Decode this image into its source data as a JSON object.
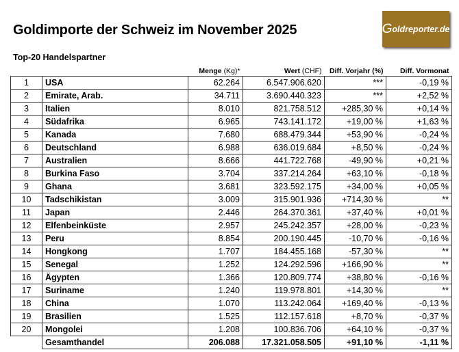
{
  "title": "Goldimporte der Schweiz im November 2025",
  "subtitle": "Top-20 Handelspartner",
  "logo": "Goldreporter.de",
  "colors": {
    "logo_bg": "#9b7322"
  },
  "headers": {
    "menge": "Menge",
    "menge_unit": "(Kg)*",
    "wert": "Wert",
    "wert_unit": "(CHF)",
    "vorjahr": "Diff. Vorjahr (%)",
    "vormonat": "Diff. Vormonat"
  },
  "rows": [
    {
      "rank": "1",
      "country": "USA",
      "menge": "62.264",
      "wert": "6.547.906.620",
      "vorjahr": "***",
      "vormonat": "-0,19 %"
    },
    {
      "rank": "2",
      "country": "Emirate, Arab.",
      "menge": "34.711",
      "wert": "3.690.440.323",
      "vorjahr": "***",
      "vormonat": "+2,52 %"
    },
    {
      "rank": "3",
      "country": "Italien",
      "menge": "8.010",
      "wert": "821.758.512",
      "vorjahr": "+285,30 %",
      "vormonat": "+0,14 %"
    },
    {
      "rank": "4",
      "country": "Südafrika",
      "menge": "6.965",
      "wert": "743.141.172",
      "vorjahr": "+19,00 %",
      "vormonat": "+1,63 %"
    },
    {
      "rank": "5",
      "country": "Kanada",
      "menge": "7.680",
      "wert": "688.479.344",
      "vorjahr": "+53,90 %",
      "vormonat": "-0,24 %"
    },
    {
      "rank": "6",
      "country": "Deutschland",
      "menge": "6.988",
      "wert": "636.019.684",
      "vorjahr": "+8,50 %",
      "vormonat": "-0,24 %"
    },
    {
      "rank": "7",
      "country": "Australien",
      "menge": "8.666",
      "wert": "441.722.768",
      "vorjahr": "-49,90 %",
      "vormonat": "+0,21 %"
    },
    {
      "rank": "8",
      "country": "Burkina Faso",
      "menge": "3.704",
      "wert": "337.214.264",
      "vorjahr": "+63,10 %",
      "vormonat": "-0,18 %"
    },
    {
      "rank": "9",
      "country": "Ghana",
      "menge": "3.681",
      "wert": "323.592.175",
      "vorjahr": "+34,00 %",
      "vormonat": "+0,05 %"
    },
    {
      "rank": "10",
      "country": "Tadschikistan",
      "menge": "3.009",
      "wert": "315.901.936",
      "vorjahr": "+714,30 %",
      "vormonat": "**"
    },
    {
      "rank": "11",
      "country": "Japan",
      "menge": "2.446",
      "wert": "264.370.361",
      "vorjahr": "+37,40 %",
      "vormonat": "+0,01 %"
    },
    {
      "rank": "12",
      "country": "Elfenbeinküste",
      "menge": "2.957",
      "wert": "245.242.357",
      "vorjahr": "+28,00 %",
      "vormonat": "-0,23 %"
    },
    {
      "rank": "13",
      "country": "Peru",
      "menge": "8.854",
      "wert": "200.190.445",
      "vorjahr": "-10,70 %",
      "vormonat": "-0,16 %"
    },
    {
      "rank": "14",
      "country": "Hongkong",
      "menge": "1.707",
      "wert": "184.455.168",
      "vorjahr": "-57,30 %",
      "vormonat": "**"
    },
    {
      "rank": "15",
      "country": "Senegal",
      "menge": "1.252",
      "wert": "124.292.596",
      "vorjahr": "+166,90 %",
      "vormonat": "**"
    },
    {
      "rank": "16",
      "country": "Ägypten",
      "menge": "1.366",
      "wert": "120.809.774",
      "vorjahr": "+38,80 %",
      "vormonat": "-0,16 %"
    },
    {
      "rank": "17",
      "country": "Suriname",
      "menge": "1.240",
      "wert": "119.978.801",
      "vorjahr": "+14,30 %",
      "vormonat": "**"
    },
    {
      "rank": "18",
      "country": "China",
      "menge": "1.070",
      "wert": "113.242.064",
      "vorjahr": "+169,40 %",
      "vormonat": "-0,13 %"
    },
    {
      "rank": "19",
      "country": "Brasilien",
      "menge": "1.525",
      "wert": "112.157.618",
      "vorjahr": "+8,70 %",
      "vormonat": "-0,37 %"
    },
    {
      "rank": "20",
      "country": "Mongolei",
      "menge": "1.208",
      "wert": "100.836.706",
      "vorjahr": "+64,10 %",
      "vormonat": "-0,37 %"
    }
  ],
  "total": {
    "label": "Gesamthandel",
    "menge": "206.088",
    "wert": "17.321.058.505",
    "vorjahr": "+91,10 %",
    "vormonat": "-1,11 %"
  }
}
